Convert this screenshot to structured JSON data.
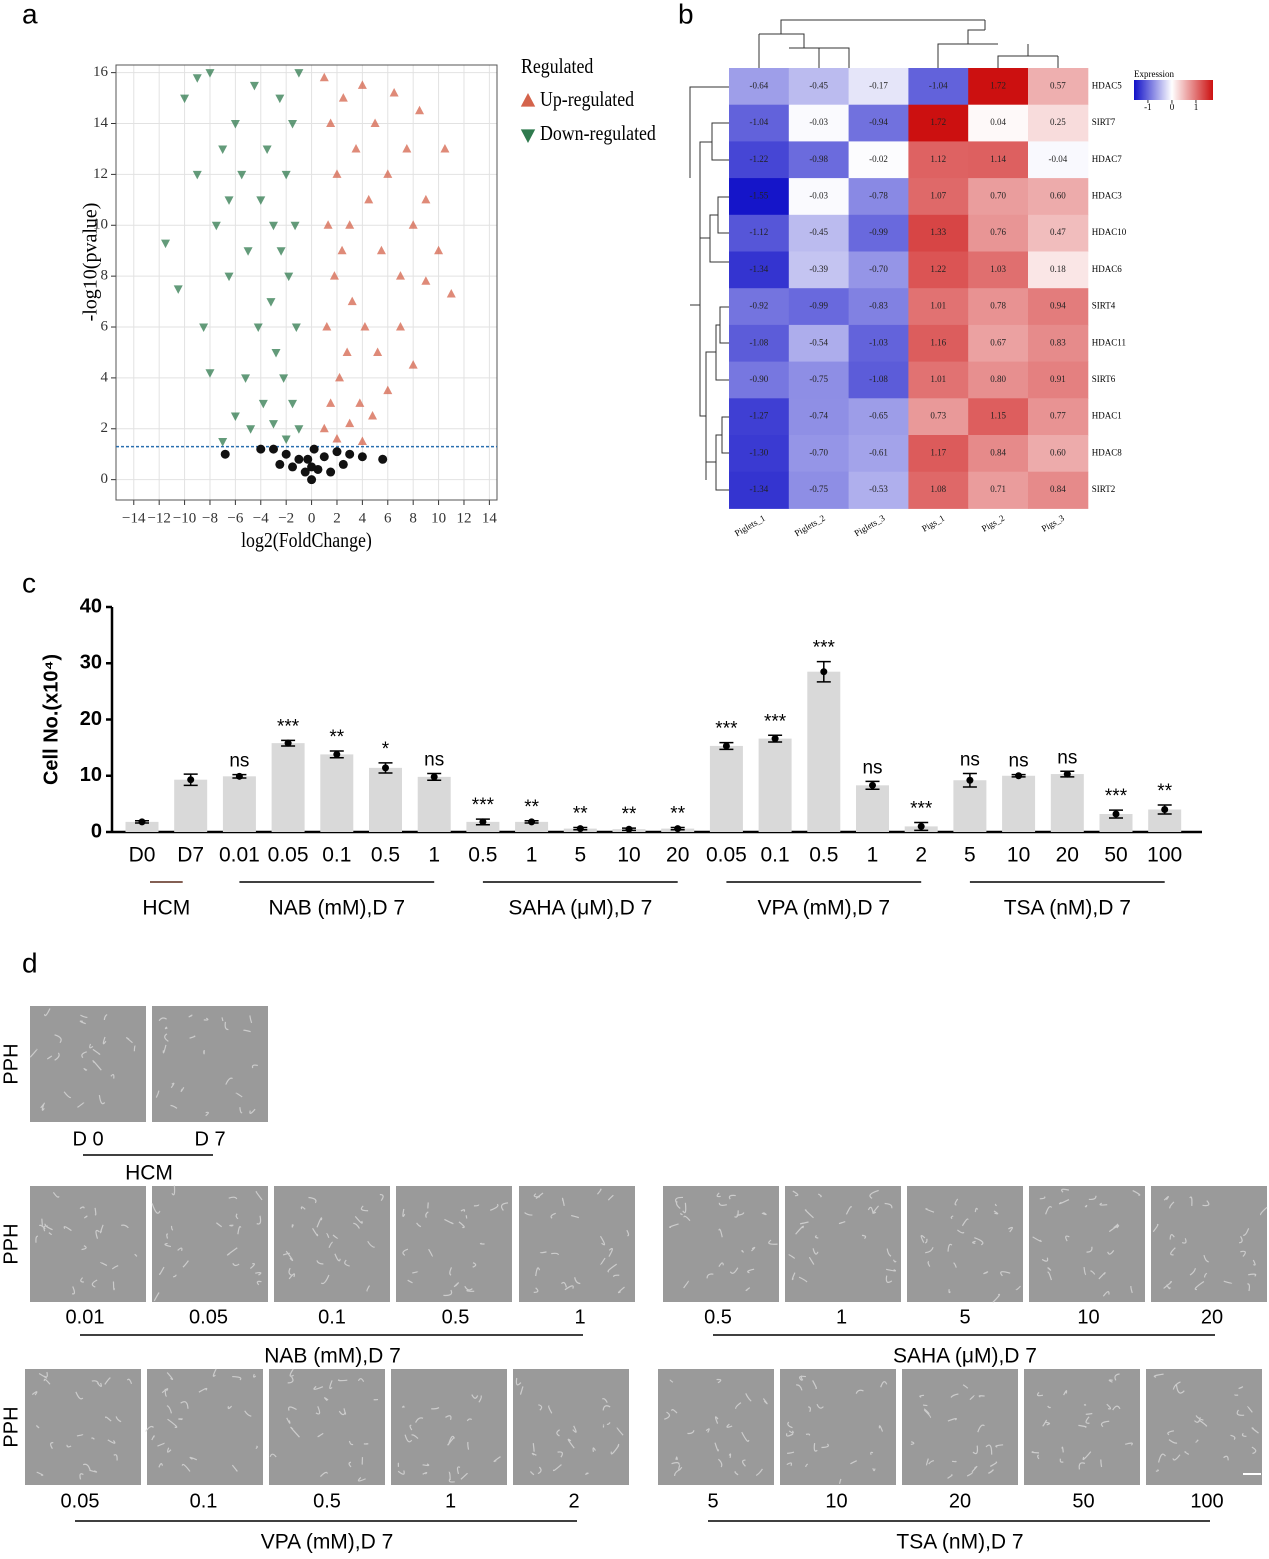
{
  "chart_data": [
    {
      "type": "scatter",
      "panel": "a",
      "xlabel": "log2(FoldChange)",
      "ylabel": "-log10(pvalue)",
      "xlim": [
        -15.4,
        14.6
      ],
      "ylim": [
        -0.8,
        16.3
      ],
      "xticks": [
        {
          "value": -14,
          "label": "−14"
        },
        {
          "value": -12,
          "label": "−12"
        },
        {
          "value": -10,
          "label": "−10"
        },
        {
          "value": -8,
          "label": "−8"
        },
        {
          "value": -6,
          "label": "−6"
        },
        {
          "value": -4,
          "label": "−4"
        },
        {
          "value": -2,
          "label": "−2"
        },
        0,
        2,
        4,
        6,
        8,
        10,
        12,
        14
      ],
      "yticks": [
        0,
        2,
        4,
        6,
        8,
        10,
        12,
        14,
        16
      ],
      "grid": true,
      "threshold": 1.3,
      "legend_title": "Regulated",
      "series": [
        {
          "name": "Up-regulated",
          "color": "#d4634b",
          "marker": "triangle-up",
          "x": [
            1,
            1.5,
            2,
            2.5,
            3,
            3.5,
            4,
            4.5,
            5,
            5.5,
            6,
            6.5,
            7,
            7.5,
            8,
            8.5,
            9,
            10,
            10.5,
            11,
            1.2,
            1.8,
            2.2,
            2.8,
            3.2,
            3.8,
            4.2,
            4.8,
            5.2,
            6,
            1,
            1.5,
            2,
            3,
            4,
            7,
            8,
            9,
            1.3,
            2.4
          ],
          "values": [
            15.8,
            14,
            12,
            15,
            10,
            13,
            15.5,
            11,
            14,
            9,
            12,
            15.2,
            8,
            13,
            10,
            14.5,
            7.8,
            9,
            13,
            7.3,
            6,
            8,
            4,
            5,
            7,
            3,
            6,
            2.5,
            5,
            3.5,
            2,
            3,
            1.6,
            2.2,
            1.5,
            6,
            4.5,
            11,
            10,
            9
          ]
        },
        {
          "name": "Down-regulated",
          "color": "#2f7a4e",
          "marker": "triangle-down",
          "x": [
            -1,
            -1.5,
            -2,
            -2.5,
            -3,
            -3.5,
            -4,
            -4.5,
            -5,
            -5.5,
            -6,
            -6.5,
            -7,
            -7.5,
            -8,
            -8.5,
            -9,
            -10,
            -10.5,
            -11.5,
            -1.2,
            -1.8,
            -2.2,
            -2.8,
            -3.2,
            -3.8,
            -4.2,
            -4.8,
            -5.2,
            -6,
            -1,
            -1.5,
            -2,
            -3,
            -7,
            -9,
            -1.3,
            -2.4,
            -6.5,
            -8
          ],
          "values": [
            16,
            14,
            12,
            15,
            10,
            13,
            11,
            15.5,
            9,
            12,
            14,
            8,
            13,
            10,
            16,
            6,
            12,
            15,
            7.5,
            9.3,
            6,
            8,
            4,
            5,
            7,
            3,
            6,
            2,
            4,
            2.5,
            2,
            3,
            1.6,
            2.2,
            1.5,
            15.8,
            10,
            9,
            11,
            4.2
          ]
        },
        {
          "color": "#111111",
          "marker": "circle",
          "x": [
            0,
            -0.5,
            0.5,
            -1,
            1,
            -2,
            2,
            -3,
            3,
            -4,
            4,
            -6.8,
            5.6,
            -1.5,
            1.5,
            0.2,
            -0.3,
            2.5,
            -2.5,
            0
          ],
          "values": [
            0,
            0.3,
            0.4,
            0.8,
            0.9,
            1,
            1.1,
            1.2,
            1,
            1.2,
            0.9,
            1,
            0.8,
            0.5,
            0.3,
            1.2,
            0.8,
            0.6,
            0.6,
            0.5
          ]
        }
      ]
    },
    {
      "type": "heatmap",
      "panel": "b",
      "columns": [
        "Piglets_1",
        "Piglets_2",
        "Piglets_3",
        "Pigs_1",
        "Pigs_2",
        "Pigs_3"
      ],
      "rows": [
        "HDAC5",
        "SIRT7",
        "HDAC7",
        "HDAC3",
        "HDAC10",
        "HDAC6",
        "SIRT4",
        "HDAC11",
        "SIRT6",
        "HDAC1",
        "HDAC8",
        "SIRT2"
      ],
      "values": [
        [
          -0.64,
          -0.45,
          -0.17,
          -1.04,
          1.72,
          0.57
        ],
        [
          -1.04,
          -0.03,
          -0.94,
          1.72,
          0.04,
          0.25
        ],
        [
          -1.22,
          -0.98,
          -0.02,
          1.12,
          1.14,
          -0.04
        ],
        [
          -1.55,
          -0.03,
          -0.78,
          1.07,
          0.7,
          0.6
        ],
        [
          -1.12,
          -0.45,
          -0.99,
          1.33,
          0.76,
          0.47
        ],
        [
          -1.34,
          -0.39,
          -0.7,
          1.22,
          1.03,
          0.18
        ],
        [
          -0.92,
          -0.99,
          -0.83,
          1.01,
          0.78,
          0.94
        ],
        [
          -1.08,
          -0.54,
          -1.03,
          1.16,
          0.67,
          0.83
        ],
        [
          -0.9,
          -0.75,
          -1.08,
          1.01,
          0.8,
          0.91
        ],
        [
          -1.27,
          -0.74,
          -0.65,
          0.73,
          1.15,
          0.77
        ],
        [
          -1.3,
          -0.7,
          -0.61,
          1.17,
          0.84,
          0.6
        ],
        [
          -1.34,
          -0.75,
          -0.53,
          1.08,
          0.71,
          0.84
        ]
      ],
      "value_labels": [
        [
          "-0.64",
          "-0.45",
          "-0.17",
          "-1.04",
          "1.72",
          "0.57"
        ],
        [
          "-1.04",
          "-0.03",
          "-0.94",
          "1.72",
          "0.04",
          "0.25"
        ],
        [
          "-1.22",
          "-0.98",
          "-0.02",
          "1.12",
          "1.14",
          "-0.04"
        ],
        [
          "-1.55",
          "-0.03",
          "-0.78",
          "1.07",
          "0.70",
          "0.60"
        ],
        [
          "-1.12",
          "-0.45",
          "-0.99",
          "1.33",
          "0.76",
          "0.47"
        ],
        [
          "-1.34",
          "-0.39",
          "-0.70",
          "1.22",
          "1.03",
          "0.18"
        ],
        [
          "-0.92",
          "-0.99",
          "-0.83",
          "1.01",
          "0.78",
          "0.94"
        ],
        [
          "-1.08",
          "-0.54",
          "-1.03",
          "1.16",
          "0.67",
          "0.83"
        ],
        [
          "-0.90",
          "-0.75",
          "-1.08",
          "1.01",
          "0.80",
          "0.91"
        ],
        [
          "-1.27",
          "-0.74",
          "-0.65",
          "0.73",
          "1.15",
          "0.77"
        ],
        [
          "-1.30",
          "-0.70",
          "-0.61",
          "1.17",
          "0.84",
          "0.60"
        ],
        [
          "-1.34",
          "-0.75",
          "-0.53",
          "1.08",
          "0.71",
          "0.84"
        ]
      ],
      "colorbar_title": "Expression",
      "zlim": [
        -1.58,
        1.71
      ],
      "colorbar_ticks": [
        -1,
        0,
        1
      ],
      "colorscale": [
        "#1010c8",
        "#ffffff",
        "#cc1010"
      ]
    },
    {
      "type": "bar",
      "panel": "c",
      "ylabel": "Cell No.(x10⁴)",
      "color": "#d9d9d9",
      "ylim": [
        0,
        40
      ],
      "yticks": [
        0,
        10,
        20,
        30,
        40
      ],
      "groups": [
        {
          "name": "HCM",
          "categories": [
            "D0",
            "D7"
          ]
        },
        {
          "name": "NAB (mM),D 7",
          "categories": [
            "0.01",
            "0.05",
            "0.1",
            "0.5",
            "1"
          ]
        },
        {
          "name": "SAHA (μM),D 7",
          "categories": [
            "0.5",
            "1",
            "5",
            "10",
            "20"
          ]
        },
        {
          "name": "VPA (mM),D 7",
          "categories": [
            "0.05",
            "0.1",
            "0.5",
            "1",
            "2"
          ]
        },
        {
          "name": "TSA (nM),D 7",
          "categories": [
            "5",
            "10",
            "20",
            "50",
            "100"
          ]
        }
      ],
      "values": [
        1.8,
        9.3,
        9.9,
        15.8,
        13.8,
        11.4,
        9.8,
        1.8,
        1.8,
        0.6,
        0.5,
        0.6,
        15.3,
        16.6,
        28.5,
        8.3,
        1.0,
        9.2,
        10.0,
        10.3,
        3.2,
        4.0
      ],
      "errors": [
        0.2,
        1.0,
        0.3,
        0.5,
        0.6,
        0.9,
        0.6,
        0.5,
        0.2,
        0.2,
        0.2,
        0.2,
        0.6,
        0.6,
        1.8,
        0.7,
        0.7,
        1.2,
        0.2,
        0.5,
        0.7,
        0.8
      ],
      "significance": [
        null,
        null,
        "ns",
        "***",
        "**",
        "*",
        "ns",
        "***",
        "**",
        "**",
        "**",
        "**",
        "***",
        "***",
        "***",
        "ns",
        "***",
        "ns",
        "ns",
        "ns",
        "***",
        "**"
      ]
    }
  ],
  "panel_d": {
    "label": "d",
    "rows": [
      {
        "row_label": "PPH",
        "groups": [
          {
            "name": "HCM",
            "conditions": [
              "D 0",
              "D 7"
            ]
          }
        ]
      },
      {
        "row_label": "PPH",
        "groups": [
          {
            "name": "NAB (mM),D 7",
            "conditions": [
              "0.01",
              "0.05",
              "0.1",
              "0.5",
              "1"
            ]
          },
          {
            "name": "SAHA (μM),D 7",
            "conditions": [
              "0.5",
              "1",
              "5",
              "10",
              "20"
            ]
          }
        ]
      },
      {
        "row_label": "PPH",
        "groups": [
          {
            "name": "VPA (mM),D 7",
            "conditions": [
              "0.05",
              "0.1",
              "0.5",
              "1",
              "2"
            ]
          },
          {
            "name": "TSA (nM),D 7",
            "conditions": [
              "5",
              "10",
              "20",
              "50",
              "100"
            ]
          }
        ]
      }
    ]
  }
}
